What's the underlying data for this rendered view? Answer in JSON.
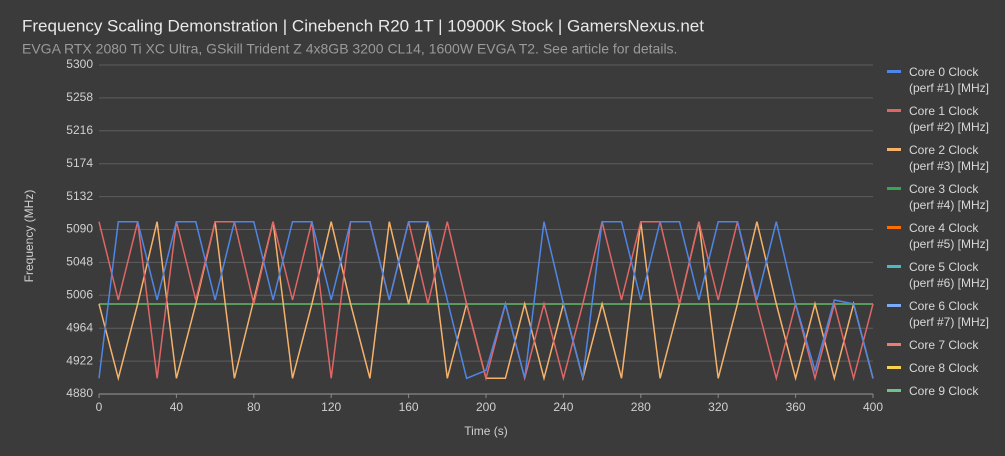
{
  "chart_data": {
    "type": "line",
    "title": "Frequency Scaling Demonstration | Cinebench R20 1T | 10900K Stock | GamersNexus.net",
    "subtitle": "EVGA RTX 2080 Ti XC Ultra, GSkill Trident Z 4x8GB 3200 CL14, 1600W EVGA T2. See article for details.",
    "x_label": "Time (s)",
    "y_label": "Frequency (MHz)",
    "x": [
      0,
      10,
      20,
      30,
      40,
      50,
      60,
      70,
      80,
      90,
      100,
      110,
      120,
      130,
      140,
      150,
      160,
      170,
      180,
      190,
      200,
      210,
      220,
      230,
      240,
      250,
      260,
      270,
      280,
      290,
      300,
      310,
      320,
      330,
      340,
      350,
      360,
      370,
      380,
      390,
      400
    ],
    "xlim": [
      0,
      400
    ],
    "xticks": [
      0,
      40,
      80,
      120,
      160,
      200,
      240,
      280,
      320,
      360,
      400
    ],
    "ylim": [
      4880,
      5300
    ],
    "yticks": [
      4880,
      4922,
      4964,
      5006,
      5048,
      5090,
      5132,
      5174,
      5216,
      5258,
      5300
    ],
    "grid": true,
    "legend": "right",
    "series": [
      {
        "name": "Core 0 Clock (perf #1) [MHz]",
        "color": "#4f86e6",
        "values": [
          4900,
          5100,
          5100,
          5000,
          5100,
          5100,
          5000,
          5100,
          5100,
          5000,
          5100,
          5100,
          5000,
          5100,
          5100,
          5000,
          5100,
          5100,
          5000,
          4900,
          4910,
          4995,
          4900,
          5100,
          4995,
          4900,
          5100,
          5100,
          5000,
          5100,
          5100,
          5000,
          5100,
          5100,
          5000,
          5100,
          4995,
          4910,
          5000,
          4995,
          4900
        ]
      },
      {
        "name": "Core 1 Clock (perf #2) [MHz]",
        "color": "#e06666",
        "values": [
          5100,
          5000,
          5100,
          4900,
          5100,
          5000,
          5100,
          5100,
          4995,
          5100,
          5000,
          5100,
          4900,
          5100,
          5100,
          5000,
          5100,
          4995,
          5100,
          4995,
          4900,
          4995,
          4900,
          4995,
          4900,
          4995,
          5100,
          5000,
          5100,
          5100,
          4995,
          5100,
          5000,
          5100,
          4995,
          4900,
          4995,
          4900,
          4995,
          4900,
          4995
        ]
      },
      {
        "name": "Core 2 Clock (perf #3) [MHz]",
        "color": "#f6b26b",
        "values": [
          4995,
          4900,
          4995,
          5100,
          4900,
          4995,
          5100,
          4900,
          5000,
          5100,
          4900,
          4995,
          5100,
          4995,
          4900,
          5100,
          4995,
          5100,
          4900,
          4995,
          4900,
          4900,
          4995,
          4900,
          4995,
          4900,
          4995,
          4900,
          5100,
          4900,
          4995,
          5100,
          4900,
          4995,
          5100,
          4995,
          4900,
          4995,
          4900,
          4995,
          4900
        ]
      },
      {
        "name": "Core 3 Clock (perf #4) [MHz]",
        "color": "#34a853",
        "values": [
          4995,
          4995,
          4995,
          4995,
          4995,
          4995,
          4995,
          4995,
          4995,
          4995,
          4995,
          4995,
          4995,
          4995,
          4995,
          4995,
          4995,
          4995,
          4995,
          4995,
          4995,
          4995,
          4995,
          4995,
          4995,
          4995,
          4995,
          4995,
          4995,
          4995,
          4995,
          4995,
          4995,
          4995,
          4995,
          4995,
          4995,
          4995,
          4995,
          4995,
          4995
        ]
      },
      {
        "name": "Core 4 Clock (perf #5) [MHz]",
        "color": "#ff6d01",
        "values": [
          4995,
          4995,
          4995,
          4995,
          4995,
          4995,
          4995,
          4995,
          4995,
          4995,
          4995,
          4995,
          4995,
          4995,
          4995,
          4995,
          4995,
          4995,
          4995,
          4995,
          4995,
          4995,
          4995,
          4995,
          4995,
          4995,
          4995,
          4995,
          4995,
          4995,
          4995,
          4995,
          4995,
          4995,
          4995,
          4995,
          4995,
          4995,
          4995,
          4995,
          4995
        ]
      },
      {
        "name": "Core 5 Clock (perf #6) [MHz]",
        "color": "#46bdc6",
        "values": [
          4995,
          4995,
          4995,
          4995,
          4995,
          4995,
          4995,
          4995,
          4995,
          4995,
          4995,
          4995,
          4995,
          4995,
          4995,
          4995,
          4995,
          4995,
          4995,
          4995,
          4995,
          4995,
          4995,
          4995,
          4995,
          4995,
          4995,
          4995,
          4995,
          4995,
          4995,
          4995,
          4995,
          4995,
          4995,
          4995,
          4995,
          4995,
          4995,
          4995,
          4995
        ]
      },
      {
        "name": "Core 6 Clock (perf #7) [MHz]",
        "color": "#7baaf7",
        "values": [
          4995,
          4995,
          4995,
          4995,
          4995,
          4995,
          4995,
          4995,
          4995,
          4995,
          4995,
          4995,
          4995,
          4995,
          4995,
          4995,
          4995,
          4995,
          4995,
          4995,
          4995,
          4995,
          4995,
          4995,
          4995,
          4995,
          4995,
          4995,
          4995,
          4995,
          4995,
          4995,
          4995,
          4995,
          4995,
          4995,
          4995,
          4995,
          4995,
          4995,
          4995
        ]
      },
      {
        "name": "Core 7 Clock",
        "color": "#f07b72",
        "values": [
          4995,
          4995,
          4995,
          4995,
          4995,
          4995,
          4995,
          4995,
          4995,
          4995,
          4995,
          4995,
          4995,
          4995,
          4995,
          4995,
          4995,
          4995,
          4995,
          4995,
          4995,
          4995,
          4995,
          4995,
          4995,
          4995,
          4995,
          4995,
          4995,
          4995,
          4995,
          4995,
          4995,
          4995,
          4995,
          4995,
          4995,
          4995,
          4995,
          4995,
          4995
        ]
      },
      {
        "name": "Core 8 Clock",
        "color": "#fcd04f",
        "values": [
          4995,
          4995,
          4995,
          4995,
          4995,
          4995,
          4995,
          4995,
          4995,
          4995,
          4995,
          4995,
          4995,
          4995,
          4995,
          4995,
          4995,
          4995,
          4995,
          4995,
          4995,
          4995,
          4995,
          4995,
          4995,
          4995,
          4995,
          4995,
          4995,
          4995,
          4995,
          4995,
          4995,
          4995,
          4995,
          4995,
          4995,
          4995,
          4995,
          4995,
          4995
        ]
      },
      {
        "name": "Core 9 Clock",
        "color": "#71c287",
        "values": [
          4995,
          4995,
          4995,
          4995,
          4995,
          4995,
          4995,
          4995,
          4995,
          4995,
          4995,
          4995,
          4995,
          4995,
          4995,
          4995,
          4995,
          4995,
          4995,
          4995,
          4995,
          4995,
          4995,
          4995,
          4995,
          4995,
          4995,
          4995,
          4995,
          4995,
          4995,
          4995,
          4995,
          4995,
          4995,
          4995,
          4995,
          4995,
          4995,
          4995,
          4995
        ]
      }
    ]
  }
}
